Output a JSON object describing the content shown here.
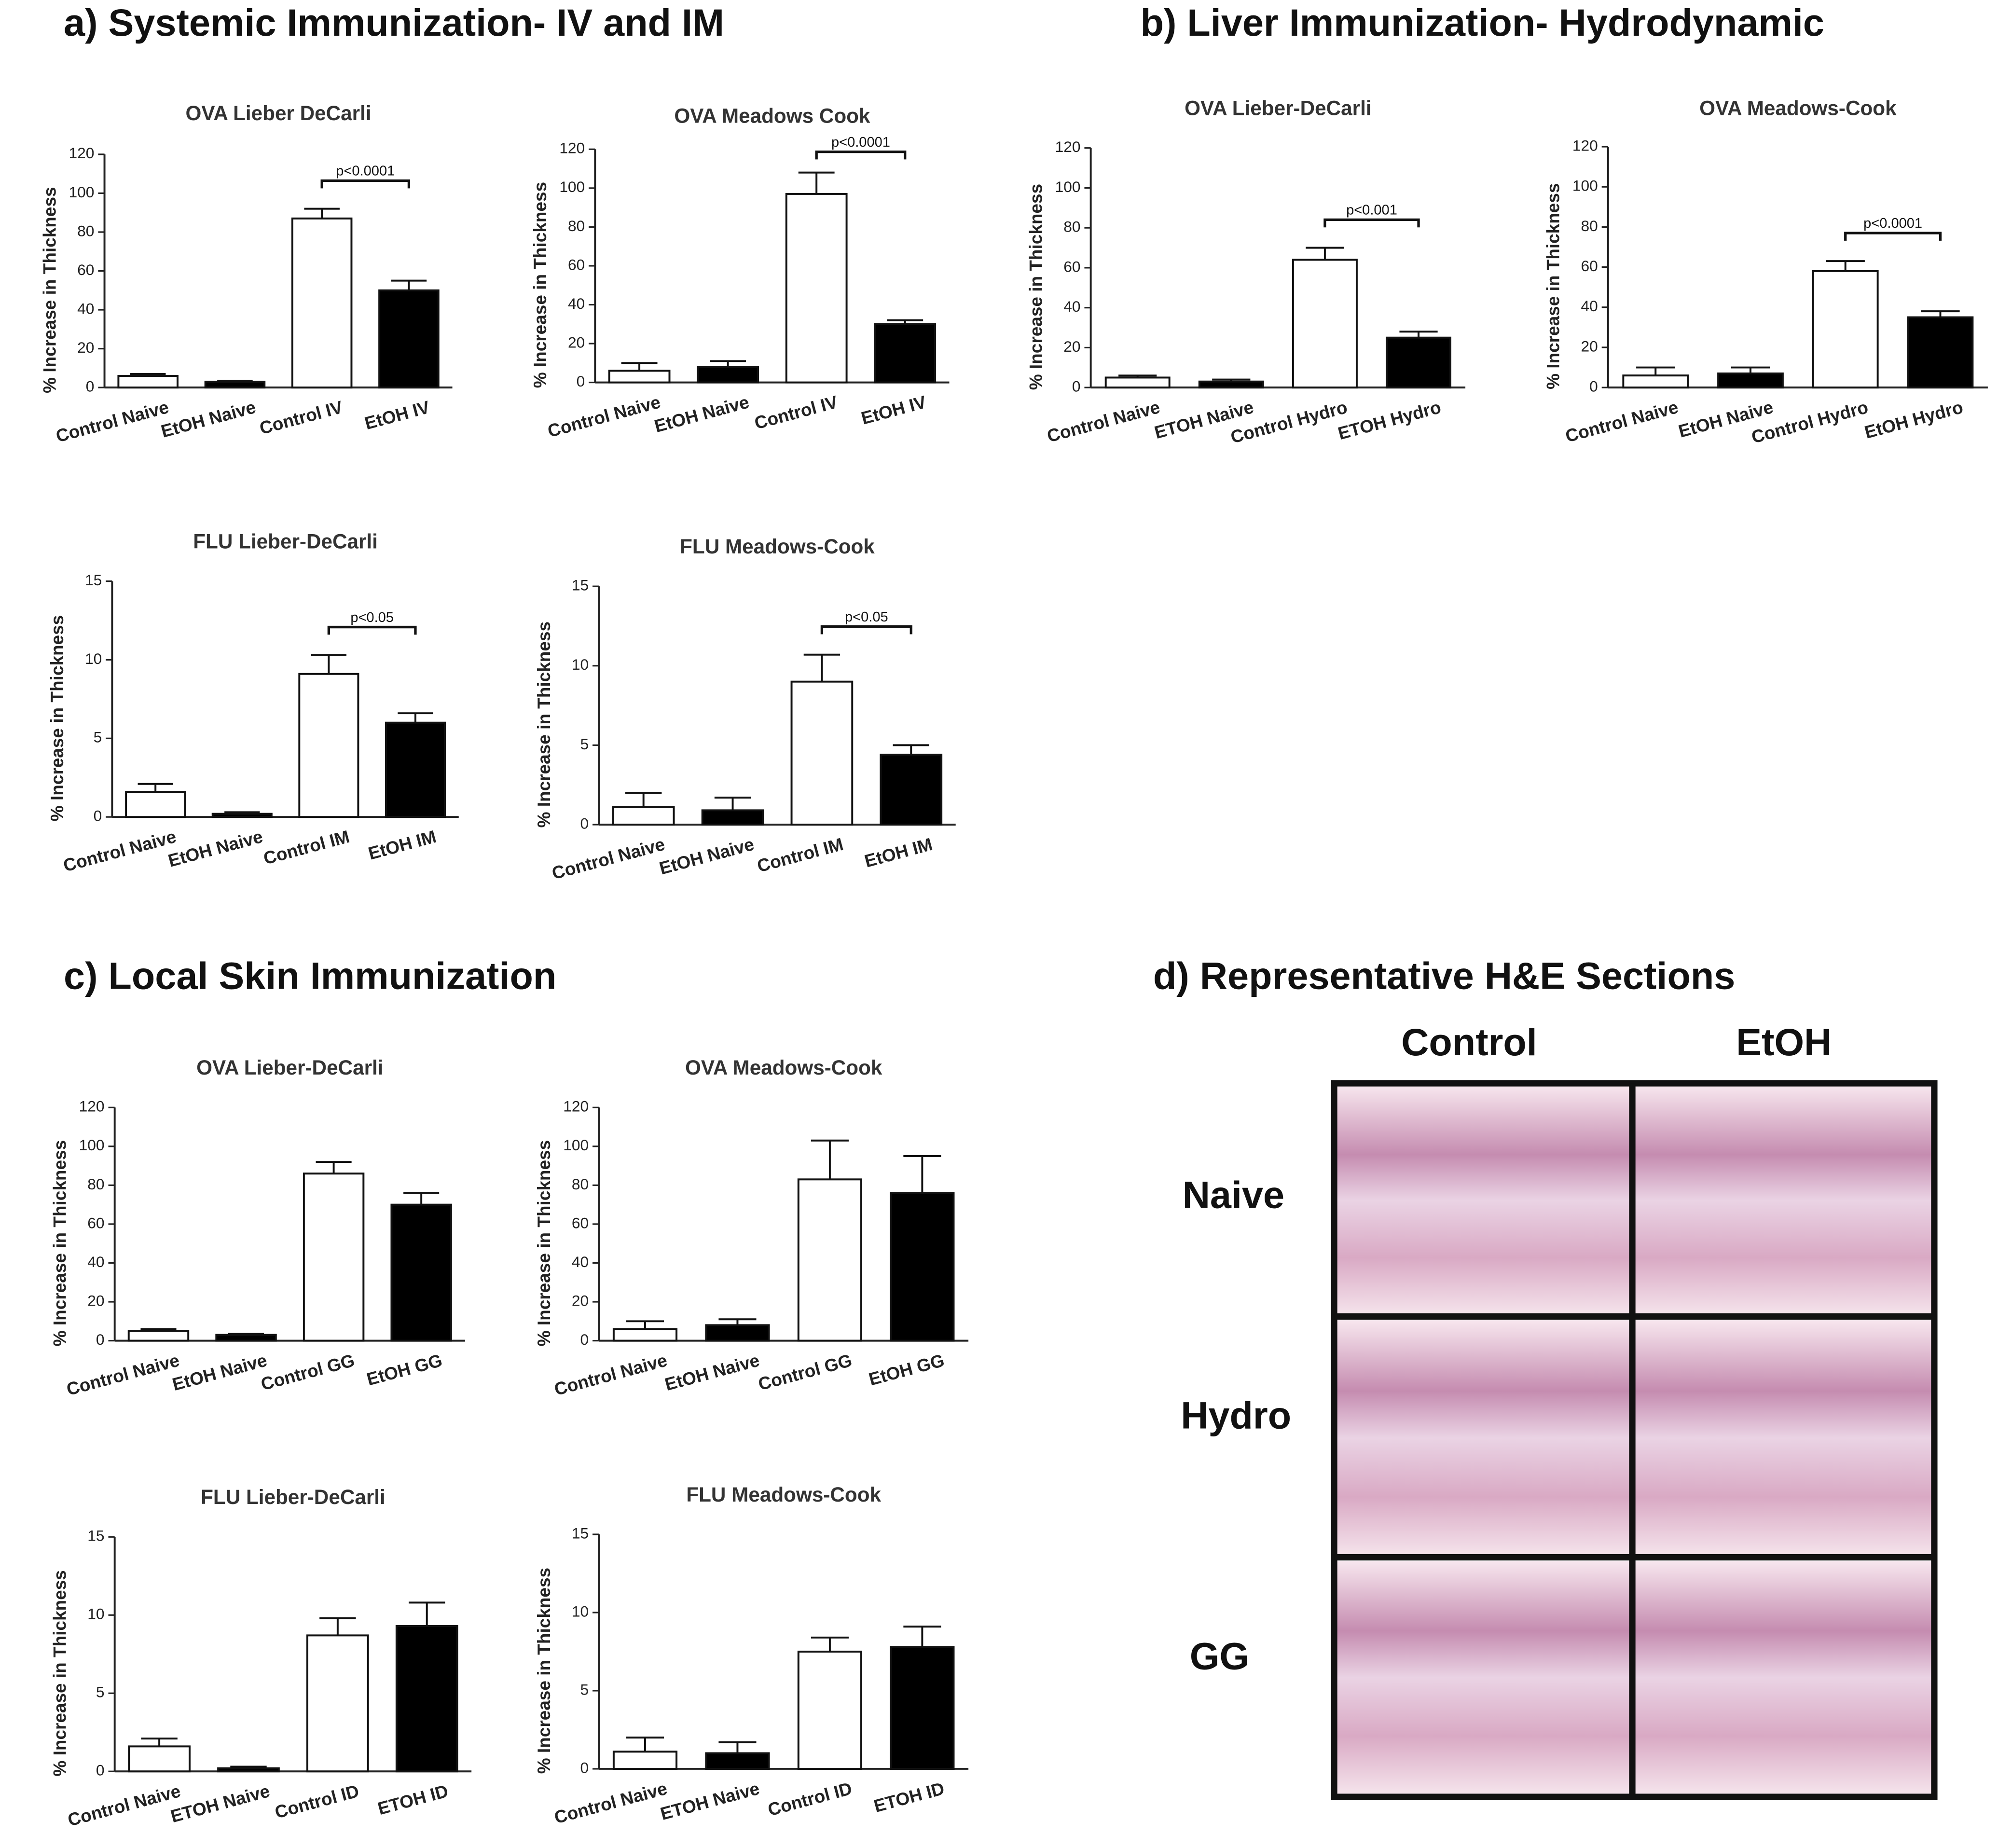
{
  "headings": {
    "a": "a) Systemic Immunization- IV and IM",
    "b": "b) Liver Immunization- Hydrodynamic",
    "c": "c) Local Skin Immunization",
    "d": "d) Representative H&E Sections"
  },
  "he_sections": {
    "columns": [
      "Control",
      "EtOH"
    ],
    "rows": [
      "Naive",
      "Hydro",
      "GG"
    ]
  },
  "chart_data": [
    {
      "type": "bar",
      "title": "OVA Lieber DeCarli",
      "y_label": "% Increase in Thickness",
      "categories": [
        "Control Naive",
        "EtOH Naive",
        "Control IV",
        "EtOH IV"
      ],
      "values": [
        6,
        3,
        87,
        50
      ],
      "errors": [
        1,
        0.5,
        5,
        5
      ],
      "colors": [
        "#ffffff",
        "#000000",
        "#ffffff",
        "#000000"
      ],
      "ylim": [
        0,
        120
      ],
      "yticks": [
        0,
        20,
        40,
        60,
        80,
        100,
        120
      ],
      "annotation": "p<0.0001"
    },
    {
      "type": "bar",
      "title": "OVA Meadows Cook",
      "y_label": "% Increase in Thickness",
      "categories": [
        "Control Naive",
        "EtOH Naive",
        "Control IV",
        "EtOH IV"
      ],
      "values": [
        6,
        8,
        97,
        30
      ],
      "errors": [
        4,
        3,
        11,
        2
      ],
      "colors": [
        "#ffffff",
        "#000000",
        "#ffffff",
        "#000000"
      ],
      "ylim": [
        0,
        120
      ],
      "yticks": [
        0,
        20,
        40,
        60,
        80,
        100,
        120
      ],
      "annotation": "p<0.0001"
    },
    {
      "type": "bar",
      "title": "FLU Lieber-DeCarli",
      "y_label": "% Increase in Thickness",
      "categories": [
        "Control Naive",
        "EtOH Naive",
        "Control IM",
        "EtOH IM"
      ],
      "values": [
        1.6,
        0.2,
        9.1,
        6.0
      ],
      "errors": [
        0.5,
        0.1,
        1.2,
        0.6
      ],
      "colors": [
        "#ffffff",
        "#000000",
        "#ffffff",
        "#000000"
      ],
      "ylim": [
        0,
        15
      ],
      "yticks": [
        0,
        5,
        10,
        15
      ],
      "annotation": "p<0.05"
    },
    {
      "type": "bar",
      "title": "FLU Meadows-Cook",
      "y_label": "% Increase in Thickness",
      "categories": [
        "Control Naive",
        "EtOH Naive",
        "Control IM",
        "EtOH IM"
      ],
      "values": [
        1.1,
        0.9,
        9.0,
        4.4
      ],
      "errors": [
        0.9,
        0.8,
        1.7,
        0.6
      ],
      "colors": [
        "#ffffff",
        "#000000",
        "#ffffff",
        "#000000"
      ],
      "ylim": [
        0,
        15
      ],
      "yticks": [
        0,
        5,
        10,
        15
      ],
      "annotation": "p<0.05"
    },
    {
      "type": "bar",
      "title": "OVA Lieber-DeCarli",
      "y_label": "% Increase in Thickness",
      "categories": [
        "Control Naive",
        "ETOH Naive",
        "Control Hydro",
        "ETOH Hydro"
      ],
      "values": [
        5,
        3,
        64,
        25
      ],
      "errors": [
        1,
        1,
        6,
        3
      ],
      "colors": [
        "#ffffff",
        "#000000",
        "#ffffff",
        "#000000"
      ],
      "ylim": [
        0,
        120
      ],
      "yticks": [
        0,
        20,
        40,
        60,
        80,
        100,
        120
      ],
      "annotation": "p<0.001"
    },
    {
      "type": "bar",
      "title": "OVA Meadows-Cook",
      "y_label": "% Increase in Thickness",
      "categories": [
        "Control Naive",
        "EtOH Naive",
        "Control Hydro",
        "EtOH Hydro"
      ],
      "values": [
        6,
        7,
        58,
        35
      ],
      "errors": [
        4,
        3,
        5,
        3
      ],
      "colors": [
        "#ffffff",
        "#000000",
        "#ffffff",
        "#000000"
      ],
      "ylim": [
        0,
        120
      ],
      "yticks": [
        0,
        20,
        40,
        60,
        80,
        100,
        120
      ],
      "annotation": "p<0.0001"
    },
    {
      "type": "bar",
      "title": "OVA Lieber-DeCarli",
      "y_label": "% Increase in Thickness",
      "categories": [
        "Control Naive",
        "EtOH Naive",
        "Control GG",
        "EtOH GG"
      ],
      "values": [
        5,
        3,
        86,
        70
      ],
      "errors": [
        1,
        0.5,
        6,
        6
      ],
      "colors": [
        "#ffffff",
        "#000000",
        "#ffffff",
        "#000000"
      ],
      "ylim": [
        0,
        120
      ],
      "yticks": [
        0,
        20,
        40,
        60,
        80,
        100,
        120
      ]
    },
    {
      "type": "bar",
      "title": "OVA Meadows-Cook",
      "y_label": "% Increase in Thickness",
      "categories": [
        "Control Naive",
        "EtOH Naive",
        "Control GG",
        "EtOH GG"
      ],
      "values": [
        6,
        8,
        83,
        76
      ],
      "errors": [
        4,
        3,
        20,
        19
      ],
      "colors": [
        "#ffffff",
        "#000000",
        "#ffffff",
        "#000000"
      ],
      "ylim": [
        0,
        120
      ],
      "yticks": [
        0,
        20,
        40,
        60,
        80,
        100,
        120
      ]
    },
    {
      "type": "bar",
      "title": "FLU Lieber-DeCarli",
      "y_label": "% Increase in Thickness",
      "categories": [
        "Control Naive",
        "ETOH Naive",
        "Control ID",
        "ETOH ID"
      ],
      "values": [
        1.6,
        0.2,
        8.7,
        9.3
      ],
      "errors": [
        0.5,
        0.1,
        1.1,
        1.5
      ],
      "colors": [
        "#ffffff",
        "#000000",
        "#ffffff",
        "#000000"
      ],
      "ylim": [
        0,
        15
      ],
      "yticks": [
        0,
        5,
        10,
        15
      ]
    },
    {
      "type": "bar",
      "title": "FLU Meadows-Cook",
      "y_label": "% Increase in Thickness",
      "categories": [
        "Control Naive",
        "ETOH Naive",
        "Control ID",
        "ETOH ID"
      ],
      "values": [
        1.1,
        1.0,
        7.5,
        7.8
      ],
      "errors": [
        0.9,
        0.7,
        0.9,
        1.3
      ],
      "colors": [
        "#ffffff",
        "#000000",
        "#ffffff",
        "#000000"
      ],
      "ylim": [
        0,
        15
      ],
      "yticks": [
        0,
        5,
        10,
        15
      ]
    }
  ]
}
